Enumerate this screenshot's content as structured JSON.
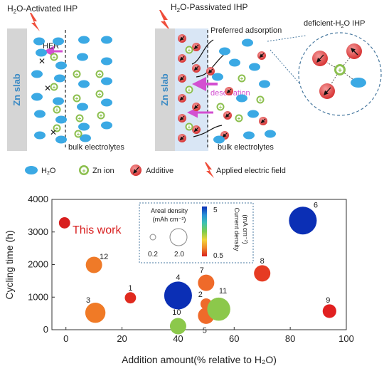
{
  "panels": {
    "left": {
      "title_prefix": "H",
      "title_sub": "2",
      "title_suffix": "O-Activated IHP",
      "slab_label": "Zn slab",
      "her_label": "HER",
      "bulk_label": "bulk electrolytes"
    },
    "middle": {
      "title_prefix": "H",
      "title_sub": "2",
      "title_suffix": "O-Passivated IHP",
      "slab_label": "Zn slab",
      "adsorption_label": "Preferred adsorption",
      "desolvation_label": "desolvation",
      "bulk_label": "bulk electrolytes"
    },
    "right": {
      "title_prefix": "deficient-H",
      "title_sub": "2",
      "title_suffix": "O IHP"
    }
  },
  "legend": {
    "water_prefix": "H",
    "water_sub": "2",
    "water_suffix": "O",
    "zn_ion": "Zn ion",
    "additive": "Additive",
    "field": "Applied electric field"
  },
  "colors": {
    "water": "#3ba9e4",
    "zn_ion_fill": "#8cbf4e",
    "additive": "#e23a3a",
    "slab": "#d5d5d5",
    "passivation": "#d9e6f5",
    "arrow_magenta": "#d34fd1",
    "this_work": "#d81e1e",
    "inset_border": "#4a7aa0"
  },
  "chart_data": {
    "type": "scatter",
    "xlabel": "Addition amount(% relative to H₂O)",
    "ylabel": "Cycling time (h)",
    "xlim": [
      -5,
      100
    ],
    "ylim": [
      0,
      4000
    ],
    "xticks": [
      0,
      20,
      40,
      60,
      80,
      100
    ],
    "yticks": [
      0,
      1000,
      2000,
      3000,
      4000
    ],
    "this_work_label": "This work",
    "points": [
      {
        "label": "",
        "x": -0.5,
        "y": 3280,
        "areal_density": 0.2,
        "current_density": 0.5,
        "color": "#d81e1e"
      },
      {
        "label": "1",
        "x": 23,
        "y": 980,
        "areal_density": 0.2,
        "current_density": 0.5,
        "color": "#e02a1e"
      },
      {
        "label": "2",
        "x": 50,
        "y": 790,
        "areal_density": 0.2,
        "current_density": 1.5,
        "color": "#ef6a2a"
      },
      {
        "label": "3",
        "x": 10.5,
        "y": 520,
        "areal_density": 2.0,
        "current_density": 1.2,
        "color": "#f07a26"
      },
      {
        "label": "4",
        "x": 40,
        "y": 1050,
        "areal_density": 5.0,
        "current_density": 5,
        "color": "#0b2fb5"
      },
      {
        "label": "5",
        "x": 50,
        "y": 430,
        "areal_density": 1.0,
        "current_density": 1.5,
        "color": "#ef6a2a"
      },
      {
        "label": "6",
        "x": 84.5,
        "y": 3350,
        "areal_density": 5.0,
        "current_density": 5,
        "color": "#0b2fb5"
      },
      {
        "label": "7",
        "x": 50,
        "y": 1440,
        "areal_density": 1.0,
        "current_density": 1.5,
        "color": "#ef6a2a"
      },
      {
        "label": "8",
        "x": 70,
        "y": 1730,
        "areal_density": 1.0,
        "current_density": 1.0,
        "color": "#e63b22"
      },
      {
        "label": "9",
        "x": 94,
        "y": 570,
        "areal_density": 0.5,
        "current_density": 0.5,
        "color": "#e12020"
      },
      {
        "label": "10",
        "x": 40,
        "y": 110,
        "areal_density": 1.0,
        "current_density": 2.5,
        "color": "#8cc84b"
      },
      {
        "label": "11",
        "x": 54.5,
        "y": 630,
        "areal_density": 3.0,
        "current_density": 2.5,
        "color": "#8cc84b"
      },
      {
        "label": "12",
        "x": 10,
        "y": 1990,
        "areal_density": 1.0,
        "current_density": 1.5,
        "color": "#ef7a28"
      }
    ],
    "size_legend": {
      "title_line1": "Areal density",
      "title_line2": "(mAh cm⁻²)",
      "small_label": "0.2",
      "large_label": "2.0"
    },
    "colorbar": {
      "title_line1": "Current density",
      "title_line2": "(mA cm⁻²)",
      "max_label": "5",
      "min_label": "0.5",
      "stops": [
        "#0b2fb5",
        "#2a8fd6",
        "#3cc1b2",
        "#7ccc4c",
        "#f2d33a",
        "#f08a2a",
        "#d81e1e"
      ]
    }
  }
}
